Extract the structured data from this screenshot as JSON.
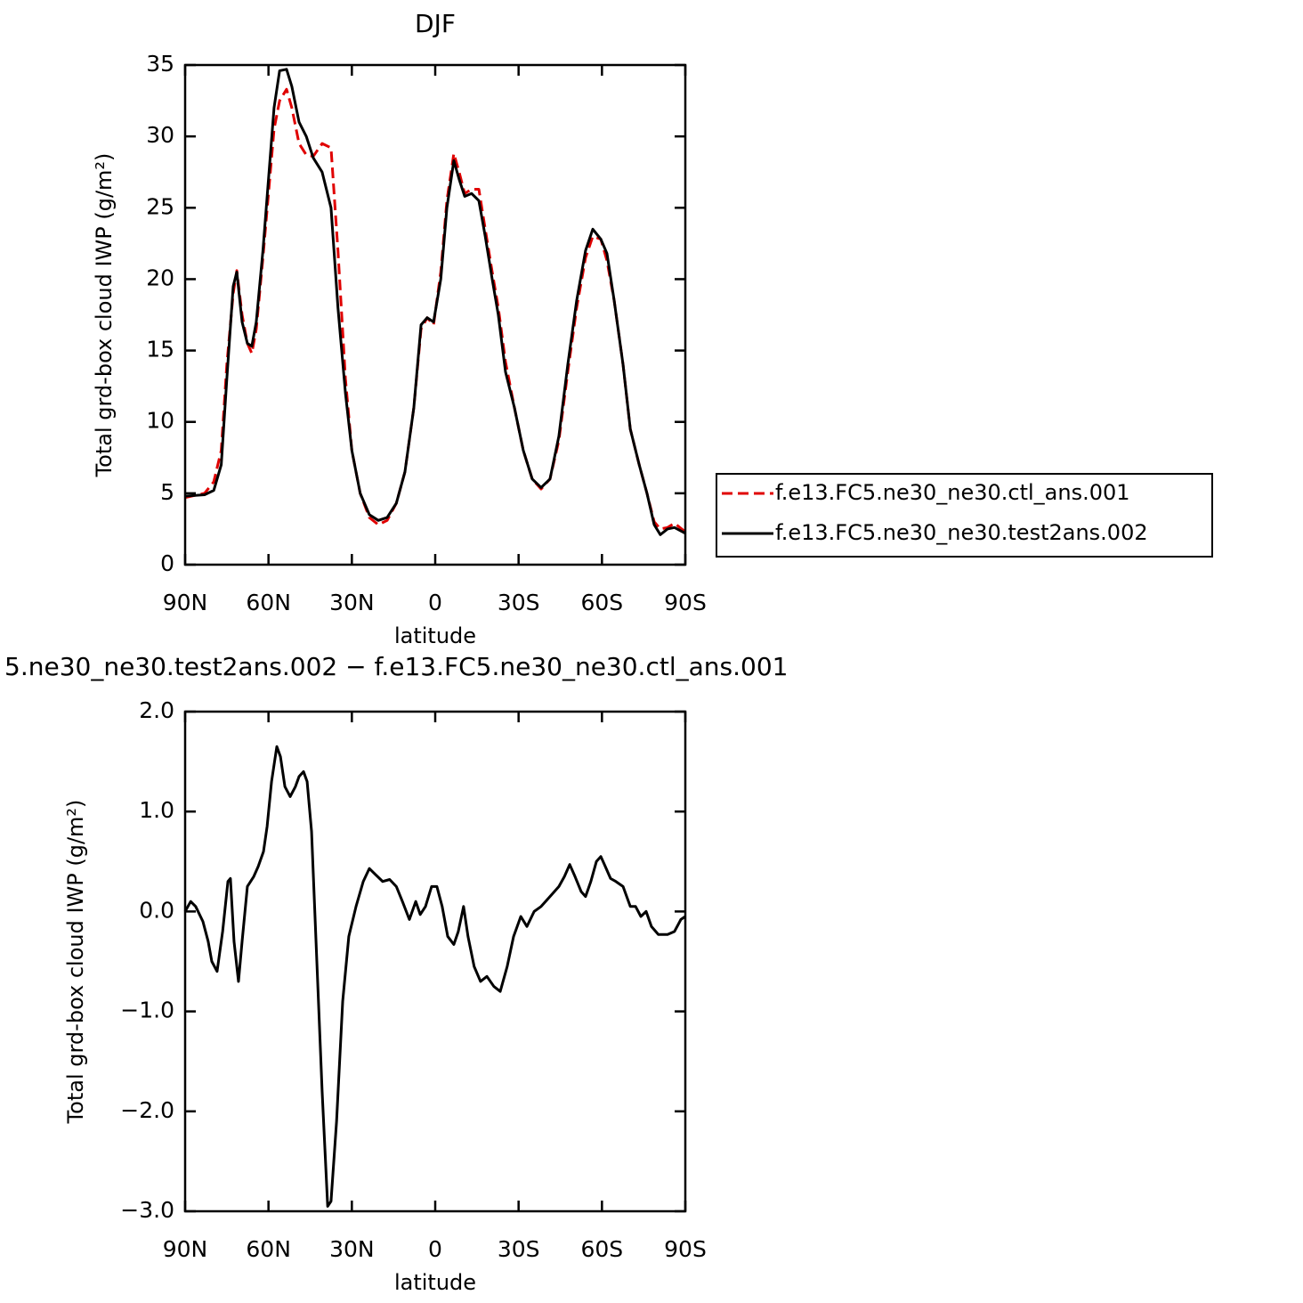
{
  "chart_data": [
    {
      "type": "line",
      "title": "DJF",
      "x_label": "latitude",
      "y_label": "Total grd-box cloud IWP (g/m²)",
      "x": [
        90,
        83,
        79.7,
        77,
        75,
        72.7,
        71.4,
        69.5,
        67.6,
        66,
        64.4,
        62,
        60,
        58,
        56,
        53.5,
        51.6,
        49,
        46.4,
        43.9,
        40.7,
        37.5,
        35,
        32.3,
        30,
        27,
        23.7,
        20.5,
        17.3,
        14,
        10.9,
        7.7,
        5.1,
        2.9,
        0.6,
        -2,
        -4.2,
        -6.7,
        -8.6,
        -10.6,
        -13.1,
        -15.7,
        -18,
        -20.5,
        -22.7,
        -25.3,
        -28.5,
        -31.7,
        -34.9,
        -38.1,
        -41.3,
        -44.5,
        -47.7,
        -50.9,
        -54.1,
        -56.7,
        -59.6,
        -61.8,
        -64.4,
        -67.6,
        -70.2,
        -73.4,
        -76.2,
        -78.8,
        -81,
        -83.6,
        -86.1,
        -90
      ],
      "series": [
        {
          "name": "f.e13.FC5.ne30_ne30.ctl_ans.001",
          "color": "#e00000",
          "line_style": "dashed",
          "values": [
            4.7,
            5,
            5.8,
            8,
            14,
            19,
            20.6,
            17.5,
            15.5,
            14.8,
            16.5,
            21.5,
            26,
            30.5,
            32.5,
            33.3,
            32,
            29.5,
            28.7,
            28.6,
            29.5,
            29.2,
            22,
            13,
            8,
            5,
            3.3,
            2.8,
            3.1,
            4.3,
            6.5,
            11,
            16.5,
            17.3,
            16.8,
            20.5,
            25.5,
            28.8,
            27.5,
            26,
            26.3,
            26.3,
            23.5,
            20.5,
            18,
            14.2,
            11,
            8,
            6,
            5.3,
            6,
            8.7,
            13.5,
            18,
            21.5,
            23,
            22.8,
            21.3,
            18.5,
            14,
            9.5,
            7,
            5,
            3,
            2.5,
            2.6,
            2.9,
            2.3
          ]
        },
        {
          "name": "f.e13.FC5.ne30_ne30.test2ans.002",
          "color": "#000000",
          "line_style": "solid",
          "values": [
            4.8,
            4.9,
            5.2,
            7,
            13,
            19.5,
            20.5,
            17,
            15.5,
            15.3,
            17,
            22,
            27,
            32,
            34.6,
            34.7,
            33.5,
            31,
            30,
            28.5,
            27.5,
            25,
            18,
            12,
            8,
            5,
            3.5,
            3.1,
            3.3,
            4.3,
            6.5,
            11,
            16.8,
            17.3,
            17,
            20,
            25,
            28.3,
            27,
            25.8,
            26,
            25.5,
            23,
            20,
            17.5,
            13.5,
            11,
            8,
            6,
            5.4,
            6,
            9,
            14,
            18.5,
            22,
            23.5,
            22.8,
            21.8,
            18.5,
            14,
            9.5,
            7,
            5,
            2.8,
            2.1,
            2.5,
            2.6,
            2.2
          ]
        }
      ],
      "xlim": [
        90,
        -90
      ],
      "xticks": [
        {
          "value": 90,
          "label": "90N"
        },
        {
          "value": 60,
          "label": "60N"
        },
        {
          "value": 30,
          "label": "30N"
        },
        0,
        {
          "value": -30,
          "label": "30S"
        },
        {
          "value": -60,
          "label": "60S"
        },
        {
          "value": -90,
          "label": "90S"
        }
      ],
      "ylim": [
        0,
        35
      ],
      "yticks": [
        0,
        5,
        10,
        15,
        20,
        25,
        30,
        35
      ],
      "legend": "right"
    },
    {
      "type": "line",
      "title": "5.ne30_ne30.test2ans.002 − f.e13.FC5.ne30_ne30.ctl_ans.001",
      "x_label": "latitude",
      "y_label": "Total grd-box cloud IWP (g/m²)",
      "x": [
        90,
        88,
        86.2,
        83.6,
        81.7,
        80.4,
        78.5,
        76.5,
        74.6,
        73.7,
        72.4,
        70.8,
        69.5,
        67.6,
        65.3,
        63.7,
        61.8,
        60.5,
        58.9,
        57,
        55.7,
        54.1,
        52.2,
        50.3,
        49,
        47.4,
        46.1,
        44.5,
        42.6,
        40.7,
        38.7,
        37.5,
        35.5,
        33.3,
        31.1,
        28.5,
        25.9,
        23.7,
        21.5,
        18.9,
        16.4,
        14,
        11.8,
        9.3,
        7,
        5.4,
        3.5,
        1.3,
        -0.6,
        -2.5,
        -4.5,
        -6.7,
        -8.3,
        -10.2,
        -11.8,
        -14,
        -16.3,
        -18.6,
        -21.1,
        -23.4,
        -25.9,
        -28.2,
        -30.8,
        -33,
        -35.6,
        -38.1,
        -41.3,
        -44.5,
        -46.5,
        -48.4,
        -50.3,
        -52.5,
        -54.1,
        -56,
        -58,
        -59.6,
        -61.2,
        -63.1,
        -65,
        -67.6,
        -70.2,
        -72.1,
        -74,
        -75.9,
        -77.8,
        -80.3,
        -83.6,
        -86.1,
        -88.4,
        -90
      ],
      "series": [
        {
          "color": "#000000",
          "line_style": "solid",
          "values": [
            0,
            0.1,
            0.05,
            -0.1,
            -0.3,
            -0.5,
            -0.6,
            -0.2,
            0.3,
            0.33,
            -0.3,
            -0.7,
            -0.3,
            0.25,
            0.35,
            0.45,
            0.6,
            0.85,
            1.3,
            1.65,
            1.55,
            1.25,
            1.15,
            1.25,
            1.35,
            1.4,
            1.3,
            0.8,
            -0.5,
            -1.8,
            -2.95,
            -2.9,
            -2.1,
            -0.9,
            -0.25,
            0.05,
            0.3,
            0.43,
            0.37,
            0.3,
            0.32,
            0.25,
            0.1,
            -0.08,
            0.1,
            -0.03,
            0.05,
            0.25,
            0.25,
            0.05,
            -0.25,
            -0.33,
            -0.2,
            0.05,
            -0.25,
            -0.55,
            -0.7,
            -0.65,
            -0.75,
            -0.8,
            -0.55,
            -0.25,
            -0.05,
            -0.15,
            0,
            0.05,
            0.15,
            0.25,
            0.35,
            0.47,
            0.35,
            0.2,
            0.15,
            0.3,
            0.5,
            0.55,
            0.45,
            0.33,
            0.3,
            0.25,
            0.05,
            0.05,
            -0.05,
            0,
            -0.15,
            -0.23,
            -0.23,
            -0.2,
            -0.08,
            -0.05
          ]
        }
      ],
      "xlim": [
        90,
        -90
      ],
      "xticks": [
        {
          "value": 90,
          "label": "90N"
        },
        {
          "value": 60,
          "label": "60N"
        },
        {
          "value": 30,
          "label": "30N"
        },
        0,
        {
          "value": -30,
          "label": "30S"
        },
        {
          "value": -60,
          "label": "60S"
        },
        {
          "value": -90,
          "label": "90S"
        }
      ],
      "ylim": [
        -3,
        2
      ],
      "yticks": [
        {
          "value": -3,
          "label": "−3.0"
        },
        {
          "value": -2,
          "label": "−2.0"
        },
        {
          "value": -1,
          "label": "−1.0"
        },
        {
          "value": 0,
          "label": "0.0"
        },
        {
          "value": 1,
          "label": "1.0"
        },
        {
          "value": 2,
          "label": "2.0"
        }
      ]
    }
  ]
}
